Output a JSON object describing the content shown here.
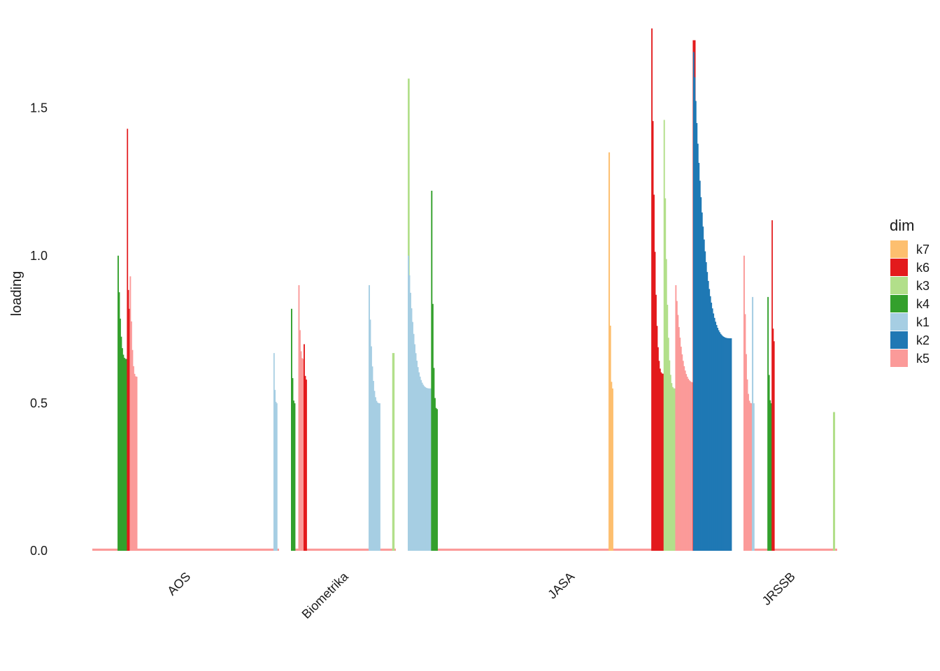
{
  "chart_data": {
    "type": "bar",
    "title": "",
    "xlabel": "",
    "ylabel": "loading",
    "ylim": [
      0,
      1.8
    ],
    "yticks": [
      0.0,
      0.5,
      1.0,
      1.5
    ],
    "ytick_labels": [
      "0.0",
      "0.5",
      "1.0",
      "1.5"
    ],
    "facets": [
      "AOS",
      "Biometrika",
      "JASA",
      "JRSSB"
    ],
    "grid": false,
    "legend": {
      "title": "dim",
      "position": "right",
      "entries": [
        {
          "name": "k7",
          "color": "#fdbf6f"
        },
        {
          "name": "k6",
          "color": "#e31a1c"
        },
        {
          "name": "k3",
          "color": "#b2df8a"
        },
        {
          "name": "k4",
          "color": "#33a02c"
        },
        {
          "name": "k1",
          "color": "#a6cee3"
        },
        {
          "name": "k2",
          "color": "#1f78b4"
        },
        {
          "name": "k5",
          "color": "#fb9a99"
        }
      ]
    },
    "baseline_dim": "k5",
    "baseline_value": 0.005,
    "groups": [
      {
        "facet": "AOS",
        "dim": "k4",
        "start": 0.135,
        "end": 0.185,
        "peak": 1.0,
        "tail": 0.65,
        "label": "AOS k4 cluster"
      },
      {
        "facet": "AOS",
        "dim": "k6",
        "start": 0.185,
        "end": 0.2,
        "peak": 1.43,
        "tail": 0.82,
        "label": "AOS k6 cluster"
      },
      {
        "facet": "AOS",
        "dim": "k5",
        "start": 0.2,
        "end": 0.24,
        "peak": 0.93,
        "tail": 0.59,
        "label": "AOS k5 cluster"
      },
      {
        "facet": "AOS",
        "dim": "k1",
        "start": 0.97,
        "end": 0.99,
        "peak": 0.67,
        "tail": 0.5,
        "label": "AOS k1 cluster"
      },
      {
        "facet": "Biometrika",
        "dim": "k4",
        "start": 0.0,
        "end": 0.04,
        "peak": 0.82,
        "tail": 0.5,
        "label": "Biometrika k4 cluster"
      },
      {
        "facet": "Biometrika",
        "dim": "k5",
        "start": 0.07,
        "end": 0.12,
        "peak": 0.9,
        "tail": 0.65,
        "label": "Biometrika k5 cluster"
      },
      {
        "facet": "Biometrika",
        "dim": "k6",
        "start": 0.12,
        "end": 0.15,
        "peak": 0.7,
        "tail": 0.58,
        "label": "Biometrika k6 cluster"
      },
      {
        "facet": "Biometrika",
        "dim": "k1",
        "start": 0.74,
        "end": 0.85,
        "peak": 0.9,
        "tail": 0.5,
        "label": "Biometrika k1 cluster"
      },
      {
        "facet": "Biometrika",
        "dim": "k3",
        "start": 0.965,
        "end": 0.985,
        "peak": 0.67,
        "tail": 0.67,
        "label": "Biometrika k3 cluster"
      },
      {
        "facet": "JASA",
        "dim": "k3",
        "start": 0.0,
        "end": 0.005,
        "peak": 1.6,
        "tail": 1.6,
        "label": "JASA k3 spike"
      },
      {
        "facet": "JASA",
        "dim": "k1",
        "start": 0.0,
        "end": 0.072,
        "peak": 1.0,
        "tail": 0.55,
        "label": "JASA k1 cluster"
      },
      {
        "facet": "JASA",
        "dim": "k4",
        "start": 0.072,
        "end": 0.092,
        "peak": 1.22,
        "tail": 0.48,
        "label": "JASA k4 cluster"
      },
      {
        "facet": "JASA",
        "dim": "k7",
        "start": 0.62,
        "end": 0.634,
        "peak": 1.35,
        "tail": 0.55,
        "label": "JASA k7 cluster"
      },
      {
        "facet": "JASA",
        "dim": "k6",
        "start": 0.752,
        "end": 0.79,
        "peak": 1.77,
        "tail": 0.6,
        "label": "JASA k6 cluster"
      },
      {
        "facet": "JASA",
        "dim": "k3",
        "start": 0.79,
        "end": 0.826,
        "peak": 1.46,
        "tail": 0.55,
        "label": "JASA k3 cluster"
      },
      {
        "facet": "JASA",
        "dim": "k5",
        "start": 0.826,
        "end": 0.89,
        "peak": 0.9,
        "tail": 0.57,
        "label": "JASA k5 cluster"
      },
      {
        "facet": "JASA",
        "dim": "k6",
        "start": 0.88,
        "end": 0.888,
        "peak": 1.73,
        "tail": 1.73,
        "label": "JASA k6 spike"
      },
      {
        "facet": "JASA",
        "dim": "k2",
        "start": 0.881,
        "end": 1.0,
        "peak": 1.69,
        "tail": 0.72,
        "label": "JASA k2 cluster"
      },
      {
        "facet": "JRSSB",
        "dim": "k5",
        "start": 0.0,
        "end": 0.09,
        "peak": 1.0,
        "tail": 0.5,
        "label": "JRSSB k5 cluster"
      },
      {
        "facet": "JRSSB",
        "dim": "k1",
        "start": 0.09,
        "end": 0.115,
        "peak": 0.86,
        "tail": 0.5,
        "label": "JRSSB k1 cluster"
      },
      {
        "facet": "JRSSB",
        "dim": "k4",
        "start": 0.255,
        "end": 0.3,
        "peak": 0.86,
        "tail": 0.5,
        "label": "JRSSB k4 cluster"
      },
      {
        "facet": "JRSSB",
        "dim": "k6",
        "start": 0.3,
        "end": 0.33,
        "peak": 1.12,
        "tail": 0.71,
        "label": "JRSSB k6 cluster"
      },
      {
        "facet": "JRSSB",
        "dim": "k3",
        "start": 0.955,
        "end": 0.975,
        "peak": 0.47,
        "tail": 0.47,
        "label": "JRSSB k3 cluster"
      }
    ]
  }
}
